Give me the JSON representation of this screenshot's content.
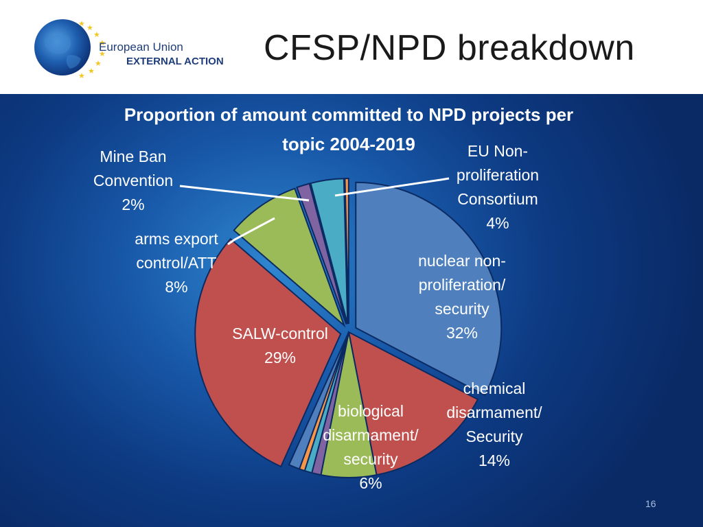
{
  "slide": {
    "title": "CFSP/NPD breakdown",
    "logo_text_line1": "European Union",
    "logo_text_line2": "EXTERNAL ACTION",
    "page_number": "16"
  },
  "colors": {
    "background_center": "#2f86d0",
    "background_edge": "#0a2a66"
  },
  "chart_data": {
    "type": "pie",
    "title": "Proportion of amount committed to NPD projects per topic 2004-2019",
    "title_lines": [
      "Proportion of amount committed to NPD projects per",
      "topic 2004-2019"
    ],
    "slices": [
      {
        "label_lines": [
          "nuclear non-",
          "proliferation/",
          "security",
          "32%"
        ],
        "value": 32,
        "color": "#4f80bd",
        "exploded": true
      },
      {
        "label_lines": [
          "chemical",
          "disarmament/",
          "Security",
          "14%"
        ],
        "value": 14,
        "color": "#c0504d",
        "exploded": false
      },
      {
        "label_lines": [
          "biological",
          "disarmament/",
          "security",
          "6%"
        ],
        "value": 6,
        "color": "#9bbb59",
        "exploded": false
      },
      {
        "label_lines": [],
        "value": 1.0,
        "color": "#8064a2",
        "exploded": false
      },
      {
        "label_lines": [],
        "value": 0.8,
        "color": "#4bacc6",
        "exploded": false
      },
      {
        "label_lines": [],
        "value": 0.6,
        "color": "#f79646",
        "exploded": false
      },
      {
        "label_lines": [],
        "value": 1.2,
        "color": "#4f80bd",
        "exploded": false
      },
      {
        "label_lines": [
          "SALW-control",
          "29%"
        ],
        "value": 29,
        "color": "#c0504d",
        "exploded": true
      },
      {
        "label_lines": [
          "arms export",
          "control/ATT",
          "8%"
        ],
        "value": 8,
        "color": "#9bbb59",
        "exploded": true
      },
      {
        "label_lines": [
          "Mine Ban",
          "Convention",
          "2%"
        ],
        "value": 1.4,
        "color": "#8064a2",
        "exploded": true
      },
      {
        "label_lines": [
          "EU Non-",
          "proliferation",
          "Consortium",
          "4%"
        ],
        "value": 3.6,
        "color": "#4bacc6",
        "exploded": true
      },
      {
        "label_lines": [],
        "value": 0.4,
        "color": "#f79646",
        "exploded": true
      }
    ]
  }
}
